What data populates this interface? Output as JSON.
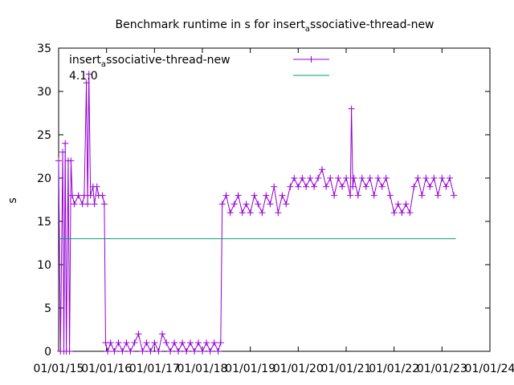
{
  "chart_data": {
    "type": "line",
    "title": {
      "pre": "Benchmark runtime in s for insert",
      "sub": "a",
      "post": "ssociative-thread-new"
    },
    "xlabel": "",
    "ylabel": "s",
    "x_ticks": [
      "01/01/15",
      "01/01/16",
      "01/01/17",
      "01/01/18",
      "01/01/19",
      "01/01/20",
      "01/01/21",
      "01/01/22",
      "01/01/23",
      "01/01/24"
    ],
    "xlim": [
      "2015-01-01",
      "2024-01-01"
    ],
    "ylim": [
      0,
      35
    ],
    "y_ticks": [
      0,
      5,
      10,
      15,
      20,
      25,
      30,
      35
    ],
    "grid": false,
    "legend_position": "top-left",
    "series": [
      {
        "name": {
          "pre": "insert",
          "sub": "a",
          "post": "ssociative-thread-new"
        },
        "color": "#9400d3",
        "points": [
          [
            "2015-01-01",
            22
          ],
          [
            "2015-01-15",
            0
          ],
          [
            "2015-02-01",
            23
          ],
          [
            "2015-02-10",
            0
          ],
          [
            "2015-02-20",
            24
          ],
          [
            "2015-03-01",
            0
          ],
          [
            "2015-03-15",
            22
          ],
          [
            "2015-03-25",
            0
          ],
          [
            "2015-04-05",
            22
          ],
          [
            "2015-04-15",
            18
          ],
          [
            "2015-05-01",
            17
          ],
          [
            "2015-06-01",
            18
          ],
          [
            "2015-07-01",
            17
          ],
          [
            "2015-07-15",
            18
          ],
          [
            "2015-08-01",
            31
          ],
          [
            "2015-08-10",
            17
          ],
          [
            "2015-08-20",
            32
          ],
          [
            "2015-09-01",
            18
          ],
          [
            "2015-09-20",
            19
          ],
          [
            "2015-10-01",
            17
          ],
          [
            "2015-10-20",
            19
          ],
          [
            "2015-11-01",
            18
          ],
          [
            "2015-12-01",
            18
          ],
          [
            "2015-12-15",
            17
          ],
          [
            "2015-12-25",
            1
          ],
          [
            "2016-01-10",
            0
          ],
          [
            "2016-02-01",
            1
          ],
          [
            "2016-03-01",
            0
          ],
          [
            "2016-04-01",
            1
          ],
          [
            "2016-05-01",
            0
          ],
          [
            "2016-06-01",
            1
          ],
          [
            "2016-07-01",
            0
          ],
          [
            "2016-08-01",
            1
          ],
          [
            "2016-09-01",
            2
          ],
          [
            "2016-10-01",
            0
          ],
          [
            "2016-11-01",
            1
          ],
          [
            "2016-12-01",
            0
          ],
          [
            "2017-01-01",
            1
          ],
          [
            "2017-02-01",
            0
          ],
          [
            "2017-03-01",
            2
          ],
          [
            "2017-04-01",
            1
          ],
          [
            "2017-05-01",
            0
          ],
          [
            "2017-06-01",
            1
          ],
          [
            "2017-07-01",
            0
          ],
          [
            "2017-08-01",
            1
          ],
          [
            "2017-09-01",
            0
          ],
          [
            "2017-10-01",
            1
          ],
          [
            "2017-11-01",
            0
          ],
          [
            "2017-12-01",
            1
          ],
          [
            "2018-01-01",
            0
          ],
          [
            "2018-02-01",
            1
          ],
          [
            "2018-03-01",
            0
          ],
          [
            "2018-04-01",
            1
          ],
          [
            "2018-05-01",
            0
          ],
          [
            "2018-05-20",
            1
          ],
          [
            "2018-06-01",
            17
          ],
          [
            "2018-07-01",
            18
          ],
          [
            "2018-08-01",
            16
          ],
          [
            "2018-09-01",
            17
          ],
          [
            "2018-10-01",
            18
          ],
          [
            "2018-11-01",
            16
          ],
          [
            "2018-12-01",
            17
          ],
          [
            "2019-01-01",
            16
          ],
          [
            "2019-02-01",
            18
          ],
          [
            "2019-03-01",
            17
          ],
          [
            "2019-04-01",
            16
          ],
          [
            "2019-05-01",
            18
          ],
          [
            "2019-06-01",
            17
          ],
          [
            "2019-07-01",
            19
          ],
          [
            "2019-08-01",
            16
          ],
          [
            "2019-09-01",
            18
          ],
          [
            "2019-10-01",
            17
          ],
          [
            "2019-11-01",
            19
          ],
          [
            "2019-12-01",
            20
          ],
          [
            "2020-01-01",
            19
          ],
          [
            "2020-02-01",
            20
          ],
          [
            "2020-03-01",
            19
          ],
          [
            "2020-04-01",
            20
          ],
          [
            "2020-05-01",
            19
          ],
          [
            "2020-06-01",
            20
          ],
          [
            "2020-07-01",
            21
          ],
          [
            "2020-08-01",
            19
          ],
          [
            "2020-09-01",
            20
          ],
          [
            "2020-10-01",
            18
          ],
          [
            "2020-11-01",
            20
          ],
          [
            "2020-12-01",
            19
          ],
          [
            "2021-01-01",
            20
          ],
          [
            "2021-02-01",
            18
          ],
          [
            "2021-02-10",
            28
          ],
          [
            "2021-02-20",
            19
          ],
          [
            "2021-03-01",
            20
          ],
          [
            "2021-04-01",
            18
          ],
          [
            "2021-05-01",
            20
          ],
          [
            "2021-06-01",
            19
          ],
          [
            "2021-07-01",
            20
          ],
          [
            "2021-08-01",
            18
          ],
          [
            "2021-09-01",
            20
          ],
          [
            "2021-10-01",
            19
          ],
          [
            "2021-11-01",
            20
          ],
          [
            "2021-12-01",
            18
          ],
          [
            "2022-01-01",
            16
          ],
          [
            "2022-02-01",
            17
          ],
          [
            "2022-03-01",
            16
          ],
          [
            "2022-04-01",
            17
          ],
          [
            "2022-05-01",
            16
          ],
          [
            "2022-06-01",
            19
          ],
          [
            "2022-07-01",
            20
          ],
          [
            "2022-08-01",
            18
          ],
          [
            "2022-09-01",
            20
          ],
          [
            "2022-10-01",
            19
          ],
          [
            "2022-11-01",
            20
          ],
          [
            "2022-12-01",
            18
          ],
          [
            "2023-01-01",
            20
          ],
          [
            "2023-02-01",
            19
          ],
          [
            "2023-03-01",
            20
          ],
          [
            "2023-04-01",
            18
          ]
        ]
      },
      {
        "name": "4.1.0",
        "color": "#009e73",
        "points": [
          [
            "2015-01-01",
            13
          ],
          [
            "2023-04-15",
            13
          ]
        ]
      }
    ]
  }
}
